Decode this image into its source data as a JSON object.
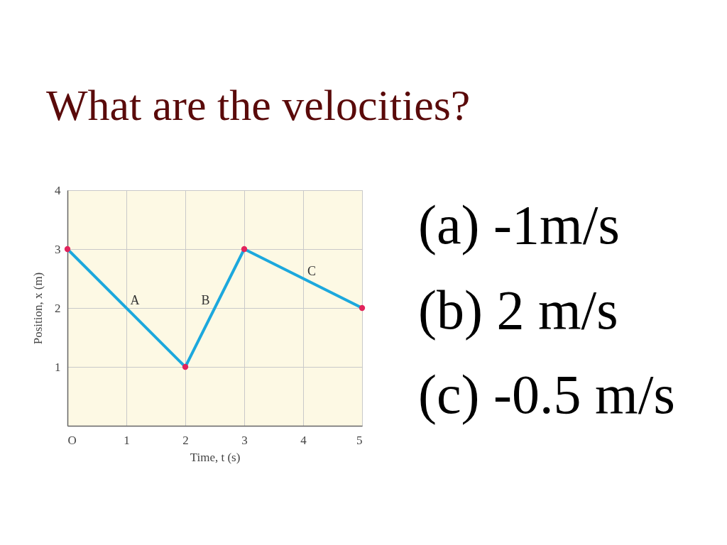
{
  "chart_data": {
    "type": "line",
    "title": "What are the velocities?",
    "xlabel": "Time, t (s)",
    "ylabel": "Position, x (m)",
    "x": [
      0,
      2,
      3,
      5
    ],
    "series": [
      {
        "color": "#1ca8dd",
        "values": [
          3,
          1,
          3,
          2
        ],
        "marker": "none",
        "line_style": "solid"
      },
      {
        "type": "scatter",
        "color": "#e2245c",
        "values": [
          3,
          1,
          3,
          2
        ],
        "marker": "circle"
      }
    ],
    "xlim": [
      0,
      5
    ],
    "ylim": [
      0,
      4
    ],
    "xticks": [
      {
        "value": 0,
        "label": "O"
      },
      1,
      2,
      3,
      4,
      5
    ],
    "yticks": [
      1,
      2,
      3,
      4
    ],
    "grid": true,
    "annotations": [
      {
        "text": "A",
        "x": 1,
        "y": 2
      },
      {
        "text": "B",
        "x": 2.5,
        "y": 2
      },
      {
        "text": "C",
        "x": 4,
        "y": 2.5
      },
      "(a) -1m/s",
      "(b) 2 m/s",
      "(c) -0.5 m/s"
    ]
  }
}
